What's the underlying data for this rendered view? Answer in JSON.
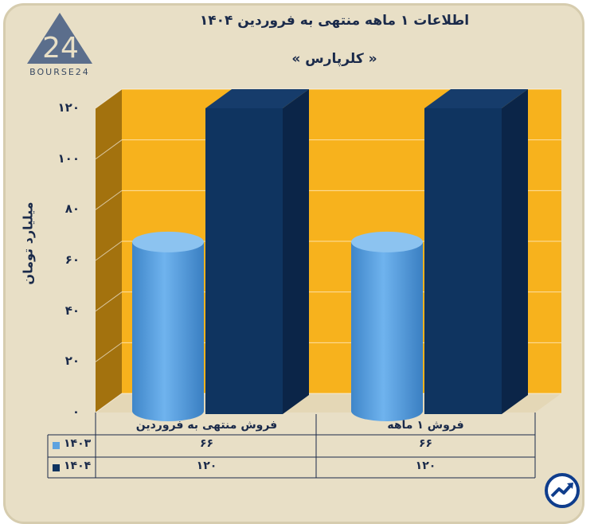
{
  "header": {
    "title": "اطلاعات ۱ ماهه منتهی به فروردین ۱۴۰۴",
    "subtitle": "« کلرپارس »"
  },
  "brand": {
    "logo_text": "BOURSE24",
    "logo_number": "24"
  },
  "chart_data": {
    "type": "bar",
    "ylabel": "میلیارد تومان",
    "ylim": [
      0,
      120
    ],
    "yticks": [
      "۰",
      "۲۰",
      "۴۰",
      "۶۰",
      "۸۰",
      "۱۰۰",
      "۱۲۰"
    ],
    "categories": [
      "فروش منتهی به  فروردین",
      "فروش ۱  ماهه"
    ],
    "series": [
      {
        "name": "۱۴۰۳",
        "color": "#5ea3e0",
        "values": [
          66,
          66
        ],
        "labels": [
          "۶۶",
          "۶۶"
        ],
        "shape": "cylinder"
      },
      {
        "name": "۱۴۰۴",
        "color": "#0f3460",
        "values": [
          120,
          120
        ],
        "labels": [
          "۱۲۰",
          "۱۲۰"
        ],
        "shape": "box"
      }
    ],
    "background_color": "#f7b21d",
    "grid": true,
    "legend": "table-left"
  }
}
